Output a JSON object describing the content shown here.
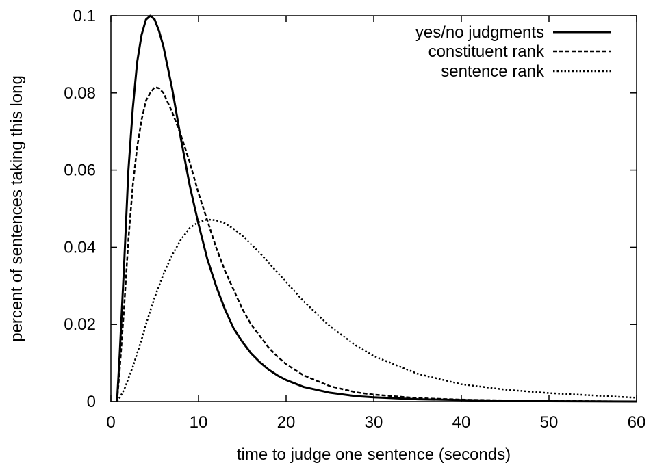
{
  "chart_data": {
    "type": "line",
    "title": "",
    "xlabel": "time to judge one sentence (seconds)",
    "ylabel": "percent of sentences taking this long",
    "xlim": [
      0,
      60
    ],
    "ylim": [
      0,
      0.1
    ],
    "xticks": [
      "0",
      "10",
      "20",
      "30",
      "40",
      "50",
      "60"
    ],
    "yticks": [
      "0",
      "0.02",
      "0.04",
      "0.06",
      "0.08",
      "0.1"
    ],
    "grid": false,
    "legend_position": "top-right",
    "x": [
      0.7,
      1,
      1.5,
      2,
      2.5,
      3,
      3.5,
      4,
      4.5,
      5,
      5.5,
      6,
      7,
      8,
      9,
      10,
      11,
      12,
      13,
      14,
      15,
      16,
      17,
      18,
      19,
      20,
      22,
      25,
      28,
      30,
      35,
      40,
      45,
      50,
      55,
      60
    ],
    "series": [
      {
        "name": "yes/no judgments",
        "style": "solid",
        "values": [
          0.0,
          0.012,
          0.035,
          0.06,
          0.076,
          0.088,
          0.095,
          0.099,
          0.1,
          0.099,
          0.096,
          0.092,
          0.081,
          0.068,
          0.056,
          0.046,
          0.037,
          0.03,
          0.024,
          0.019,
          0.0155,
          0.0125,
          0.0102,
          0.0083,
          0.0068,
          0.0056,
          0.0038,
          0.0023,
          0.0014,
          0.0011,
          0.0006,
          0.0004,
          0.0002,
          0.0001,
          5e-05,
          0.0
        ]
      },
      {
        "name": "constituent rank",
        "style": "dashed",
        "values": [
          0.0,
          0.008,
          0.024,
          0.042,
          0.056,
          0.066,
          0.073,
          0.078,
          0.08,
          0.0815,
          0.0812,
          0.08,
          0.075,
          0.069,
          0.062,
          0.054,
          0.047,
          0.04,
          0.034,
          0.029,
          0.024,
          0.02,
          0.017,
          0.014,
          0.0117,
          0.0097,
          0.0068,
          0.004,
          0.0024,
          0.0018,
          0.0009,
          0.0005,
          0.0003,
          0.0002,
          0.0001,
          0.0
        ]
      },
      {
        "name": "sentence rank",
        "style": "dotted",
        "values": [
          0.0,
          0.001,
          0.003,
          0.006,
          0.009,
          0.0125,
          0.016,
          0.02,
          0.0235,
          0.027,
          0.03,
          0.033,
          0.038,
          0.042,
          0.045,
          0.0465,
          0.0472,
          0.047,
          0.0462,
          0.0448,
          0.043,
          0.0408,
          0.0385,
          0.036,
          0.0335,
          0.031,
          0.026,
          0.0195,
          0.0145,
          0.0118,
          0.0072,
          0.0045,
          0.0031,
          0.0022,
          0.0016,
          0.001
        ]
      }
    ]
  }
}
